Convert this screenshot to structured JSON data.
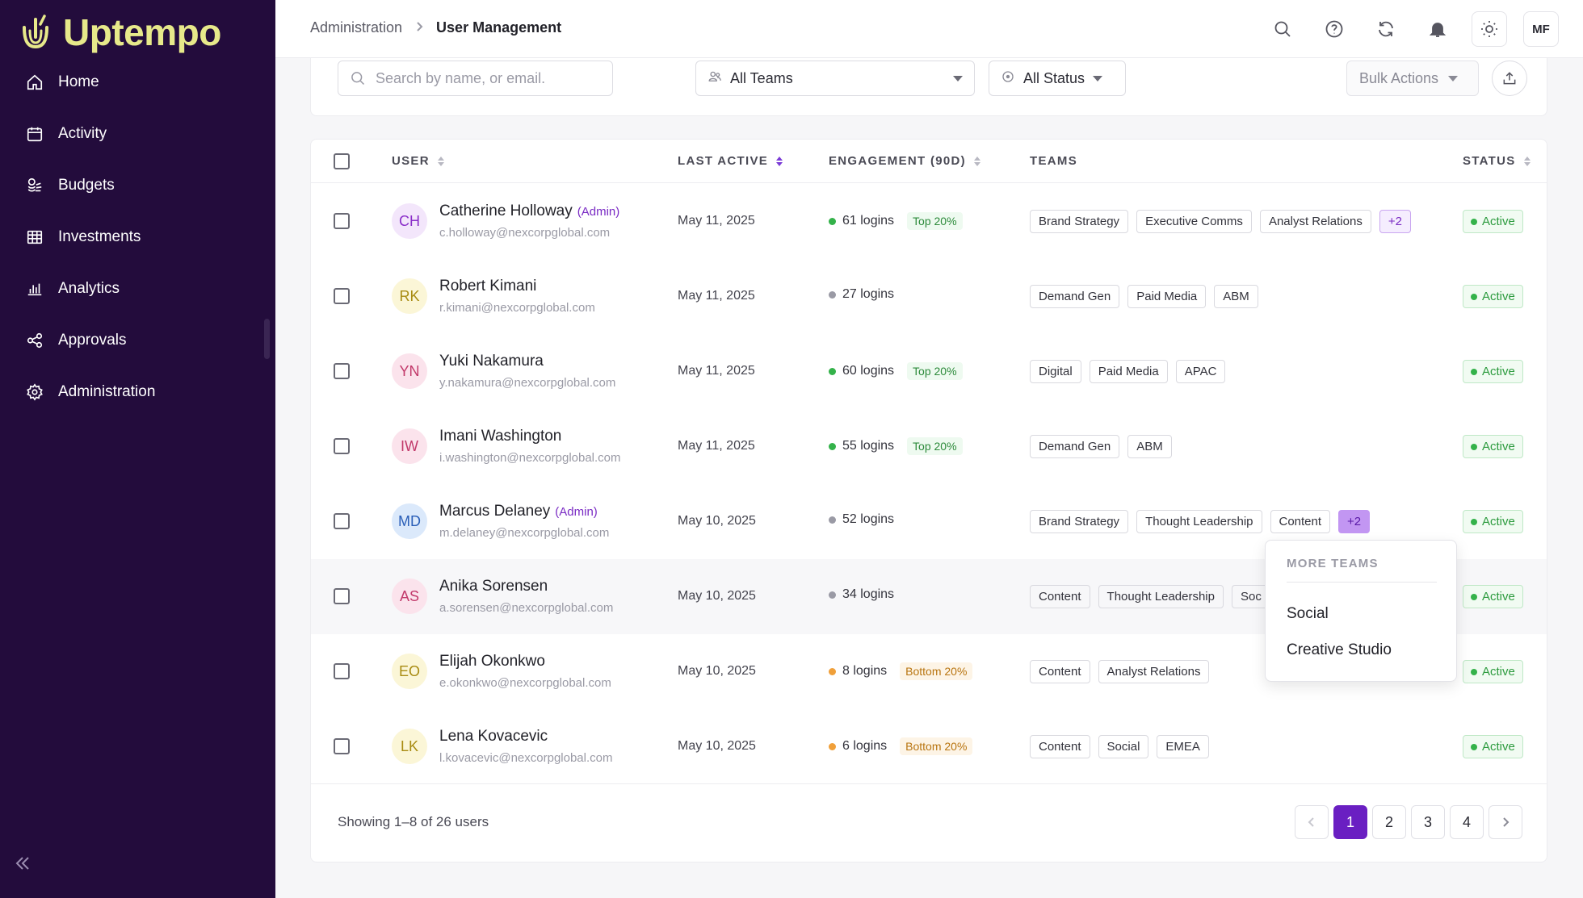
{
  "app": {
    "name": "Uptempo"
  },
  "sidebar": {
    "items": [
      {
        "label": "Home",
        "icon": "home-icon"
      },
      {
        "label": "Activity",
        "icon": "calendar-icon"
      },
      {
        "label": "Budgets",
        "icon": "coins-icon"
      },
      {
        "label": "Investments",
        "icon": "grid-icon"
      },
      {
        "label": "Analytics",
        "icon": "bar-chart-icon"
      },
      {
        "label": "Approvals",
        "icon": "share-nodes-icon"
      },
      {
        "label": "Administration",
        "icon": "gear-icon"
      }
    ]
  },
  "header": {
    "breadcrumb": [
      "Administration",
      "User Management"
    ],
    "user_initials": "MF"
  },
  "filters": {
    "search_placeholder": "Search by name, or email.",
    "teams_label": "All Teams",
    "status_label": "All Status",
    "bulk_label": "Bulk Actions"
  },
  "table": {
    "columns": [
      "USER",
      "LAST ACTIVE",
      "ENGAGEMENT (90D)",
      "TEAMS",
      "STATUS"
    ],
    "rows": [
      {
        "initials": "CH",
        "name": "Catherine Holloway",
        "admin": "(Admin)",
        "email": "c.holloway@nexcorpglobal.com",
        "last_active": "May 11, 2025",
        "logins": "61 logins",
        "level": "Top 20%",
        "level_kind": "top",
        "teams": [
          "Brand Strategy",
          "Executive Comms",
          "Analyst Relations"
        ],
        "more": "+2",
        "status": "Active",
        "av_bg": "#f3e6fb",
        "av_fg": "#8a2ec9"
      },
      {
        "initials": "RK",
        "name": "Robert Kimani",
        "admin": "",
        "email": "r.kimani@nexcorpglobal.com",
        "last_active": "May 11, 2025",
        "logins": "27 logins",
        "level": "",
        "level_kind": "none",
        "teams": [
          "Demand Gen",
          "Paid Media",
          "ABM"
        ],
        "more": "",
        "status": "Active",
        "av_bg": "#fbf6d7",
        "av_fg": "#a88b12"
      },
      {
        "initials": "YN",
        "name": "Yuki Nakamura",
        "admin": "",
        "email": "y.nakamura@nexcorpglobal.com",
        "last_active": "May 11, 2025",
        "logins": "60 logins",
        "level": "Top 20%",
        "level_kind": "top",
        "teams": [
          "Digital",
          "Paid Media",
          "APAC"
        ],
        "more": "",
        "status": "Active",
        "av_bg": "#fbe3ec",
        "av_fg": "#c23a6b"
      },
      {
        "initials": "IW",
        "name": "Imani Washington",
        "admin": "",
        "email": "i.washington@nexcorpglobal.com",
        "last_active": "May 11, 2025",
        "logins": "55 logins",
        "level": "Top 20%",
        "level_kind": "top",
        "teams": [
          "Demand Gen",
          "ABM"
        ],
        "more": "",
        "status": "Active",
        "av_bg": "#fbe3ec",
        "av_fg": "#c23a6b"
      },
      {
        "initials": "MD",
        "name": "Marcus Delaney",
        "admin": "(Admin)",
        "email": "m.delaney@nexcorpglobal.com",
        "last_active": "May 10, 2025",
        "logins": "52 logins",
        "level": "",
        "level_kind": "none",
        "teams": [
          "Brand Strategy",
          "Thought Leadership",
          "Content"
        ],
        "more": "+2",
        "status": "Active",
        "av_bg": "#dbe9fb",
        "av_fg": "#2a5fb8"
      },
      {
        "initials": "AS",
        "name": "Anika Sorensen",
        "admin": "",
        "email": "a.sorensen@nexcorpglobal.com",
        "last_active": "May 10, 2025",
        "logins": "34 logins",
        "level": "",
        "level_kind": "none",
        "teams": [
          "Content",
          "Thought Leadership",
          "Soc"
        ],
        "more": "",
        "status": "Active",
        "av_bg": "#fbe3ec",
        "av_fg": "#c23a6b"
      },
      {
        "initials": "EO",
        "name": "Elijah Okonkwo",
        "admin": "",
        "email": "e.okonkwo@nexcorpglobal.com",
        "last_active": "May 10, 2025",
        "logins": "8 logins",
        "level": "Bottom 20%",
        "level_kind": "bottom",
        "teams": [
          "Content",
          "Analyst Relations"
        ],
        "more": "",
        "status": "Active",
        "av_bg": "#fbf6d7",
        "av_fg": "#a88b12"
      },
      {
        "initials": "LK",
        "name": "Lena Kovacevic",
        "admin": "",
        "email": "l.kovacevic@nexcorpglobal.com",
        "last_active": "May 10, 2025",
        "logins": "6 logins",
        "level": "Bottom 20%",
        "level_kind": "bottom",
        "teams": [
          "Content",
          "Social",
          "EMEA"
        ],
        "more": "",
        "status": "Active",
        "av_bg": "#fbf6d7",
        "av_fg": "#a88b12"
      }
    ]
  },
  "popover": {
    "title": "MORE TEAMS",
    "items": [
      "Social",
      "Creative Studio"
    ]
  },
  "footer": {
    "showing": "Showing 1–8 of 26 users",
    "pages": [
      "1",
      "2",
      "3",
      "4"
    ]
  },
  "colors": {
    "sidebar_bg": "#230c3c",
    "brand_yellow": "#e7e98a",
    "accent_purple": "#6a1fc2",
    "active_green": "#2c9b3e"
  }
}
